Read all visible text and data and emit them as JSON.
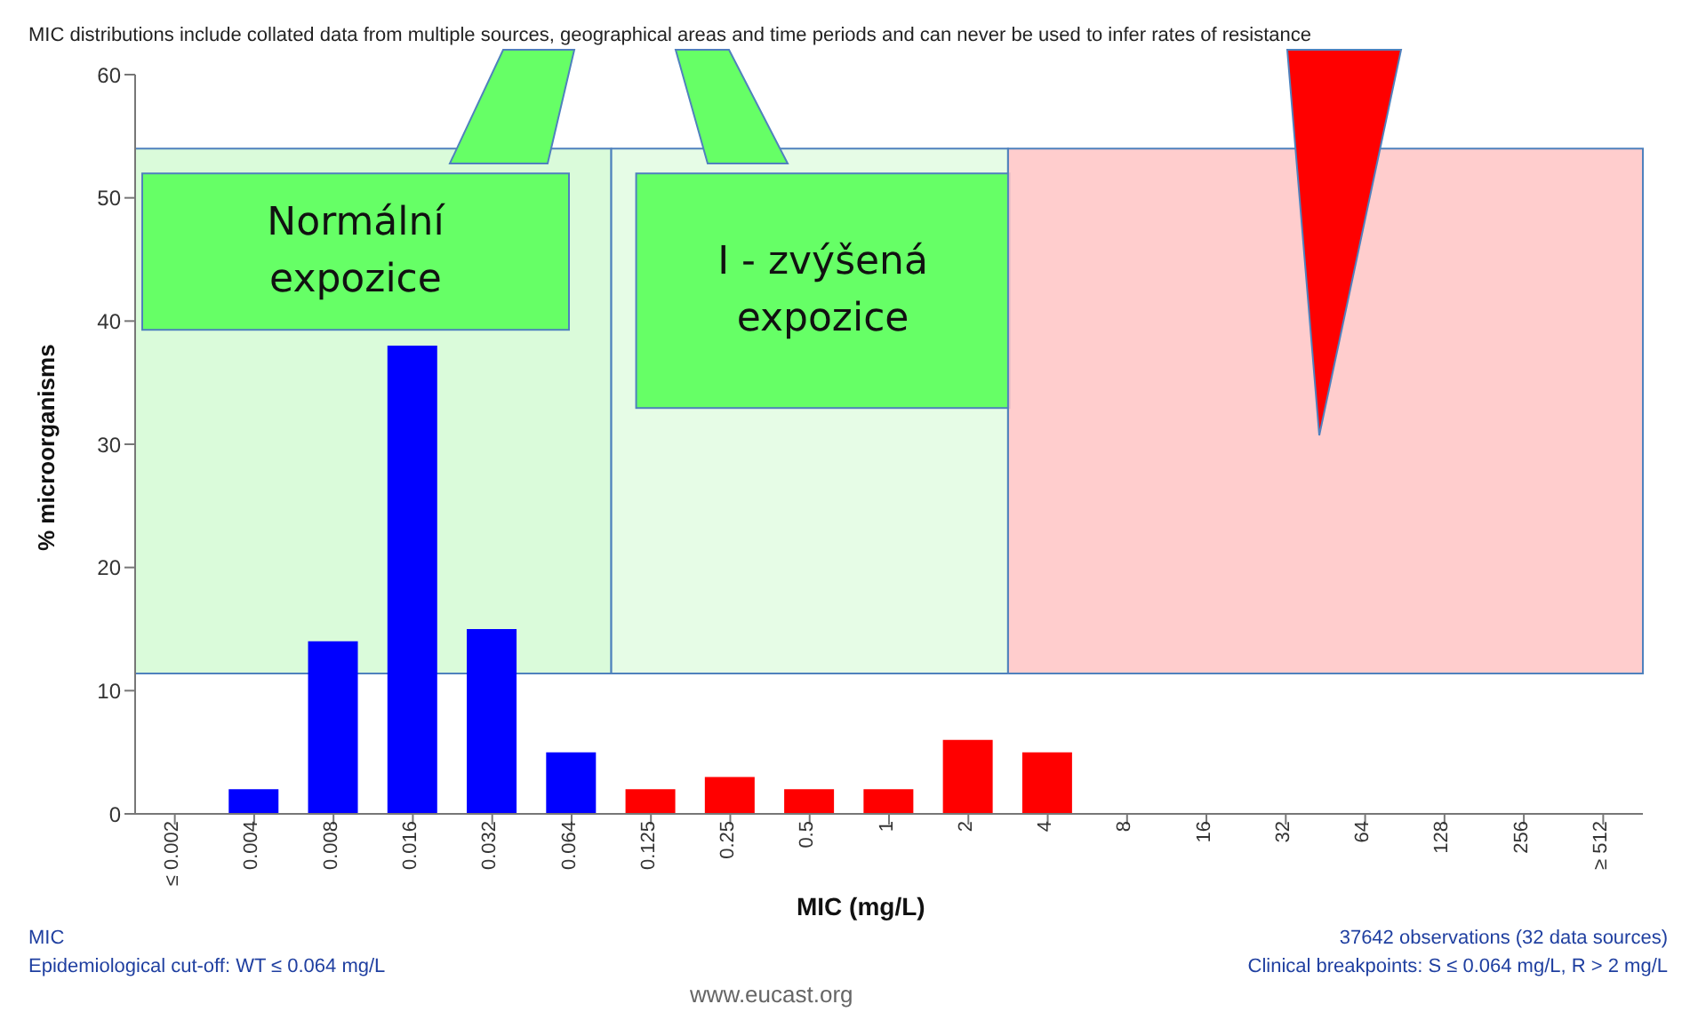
{
  "chart_data": {
    "type": "bar",
    "title": "MIC distributions include collated data from multiple sources, geographical areas and time periods and can never be used to infer rates of resistance",
    "xlabel": "MIC (mg/L)",
    "ylabel": "% microorganisms",
    "categories": [
      "≤ 0.002",
      "0.004",
      "0.008",
      "0.016",
      "0.032",
      "0.064",
      "0.125",
      "0.25",
      "0.5",
      "1",
      "2",
      "4",
      "8",
      "16",
      "32",
      "64",
      "128",
      "256",
      "≥ 512"
    ],
    "values": [
      0,
      2,
      14,
      38,
      15,
      5,
      2,
      3,
      2,
      2,
      6,
      5,
      0,
      0,
      0,
      0,
      0,
      0,
      0
    ],
    "colors": [
      "#0000ff",
      "#0000ff",
      "#0000ff",
      "#0000ff",
      "#0000ff",
      "#0000ff",
      "#ff0000",
      "#ff0000",
      "#ff0000",
      "#ff0000",
      "#ff0000",
      "#ff0000",
      "#ff0000",
      "#ff0000",
      "#ff0000",
      "#ff0000",
      "#ff0000",
      "#ff0000",
      "#ff0000"
    ],
    "ylim": [
      0,
      60
    ],
    "yticks": [
      0,
      10,
      20,
      30,
      40,
      50,
      60
    ],
    "grid": false,
    "legend": false,
    "bands": [
      {
        "axis": "x",
        "from": "≤ 0.002",
        "to": "0.064",
        "label": "Normální expozice",
        "color": "#d4fad4"
      },
      {
        "axis": "x",
        "from": "0.125",
        "to": "2",
        "label": "I - zvýšená expozice",
        "color": "#e2fbe2"
      },
      {
        "axis": "x",
        "from": "4",
        "to": "≥ 512",
        "color": "#ffc4c4"
      }
    ],
    "annotations": [
      "MIC",
      "Epidemiological cut-off: WT ≤ 0.064 mg/L",
      "37642 observations (32 data sources)",
      "Clinical breakpoints: S ≤ 0.064 mg/L, R > 2 mg/L",
      "www.eucast.org"
    ]
  }
}
